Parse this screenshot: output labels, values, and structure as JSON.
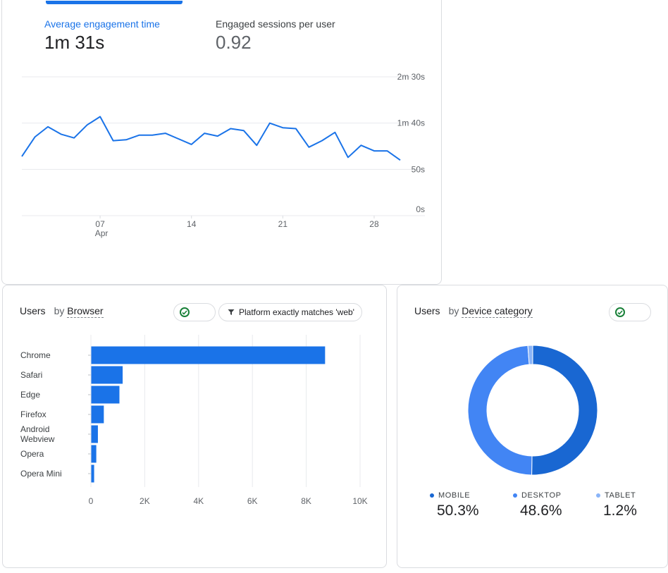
{
  "engagement_card": {
    "metrics": [
      {
        "label": "Average engagement time",
        "value": "1m 31s"
      },
      {
        "label": "Engaged sessions per user",
        "value": "0.92"
      }
    ]
  },
  "browser_card": {
    "title_metric": "Users",
    "title_by": "by",
    "title_dimension": "Browser",
    "filter_label": "Platform exactly matches 'web'"
  },
  "device_card": {
    "title_metric": "Users",
    "title_by": "by",
    "title_dimension": "Device category",
    "legend": [
      {
        "label": "MOBILE",
        "value": "50.3%",
        "color": "#1967d2"
      },
      {
        "label": "DESKTOP",
        "value": "48.6%",
        "color": "#4285f4"
      },
      {
        "label": "TABLET",
        "value": "1.2%",
        "color": "#8ab4f8"
      }
    ]
  },
  "chart_data": [
    {
      "type": "line",
      "y_unit": "seconds",
      "y_ticks": [
        "2m 30s",
        "1m 40s",
        "50s",
        "0s"
      ],
      "y_tick_values": [
        150,
        100,
        50,
        0
      ],
      "ylim": [
        0,
        150
      ],
      "x_ticks": [
        {
          "label": "07",
          "sub": "Apr",
          "x": 7
        },
        {
          "label": "14",
          "x": 14
        },
        {
          "label": "21",
          "x": 21
        },
        {
          "label": "28",
          "x": 28
        }
      ],
      "x": [
        1,
        2,
        3,
        4,
        5,
        6,
        7,
        8,
        9,
        10,
        11,
        12,
        13,
        14,
        15,
        16,
        17,
        18,
        19,
        20,
        21,
        22,
        23,
        24,
        25,
        26,
        27,
        28,
        29,
        30
      ],
      "values": [
        64,
        85,
        96,
        88,
        84,
        98,
        107,
        81,
        82,
        87,
        87,
        89,
        83,
        77,
        89,
        86,
        94,
        92,
        76,
        100,
        95,
        94,
        74,
        81,
        90,
        63,
        76,
        70,
        70,
        60
      ],
      "grid": true
    },
    {
      "type": "bar",
      "orientation": "horizontal",
      "categories": [
        "Chrome",
        "Safari",
        "Edge",
        "Firefox",
        "Android Webview",
        "Opera",
        "Opera Mini"
      ],
      "values": [
        8700,
        1180,
        1060,
        480,
        260,
        200,
        120
      ],
      "x_ticks": [
        "0",
        "2K",
        "4K",
        "6K",
        "8K",
        "10K"
      ],
      "x_tick_values": [
        0,
        2000,
        4000,
        6000,
        8000,
        10000
      ],
      "xlim": [
        0,
        10000
      ],
      "grid": true,
      "color": "#1a73e8"
    },
    {
      "type": "pie",
      "categories": [
        "MOBILE",
        "DESKTOP",
        "TABLET"
      ],
      "values": [
        50.3,
        48.6,
        1.2
      ],
      "colors": [
        "#1967d2",
        "#4285f4",
        "#8ab4f8"
      ]
    }
  ]
}
